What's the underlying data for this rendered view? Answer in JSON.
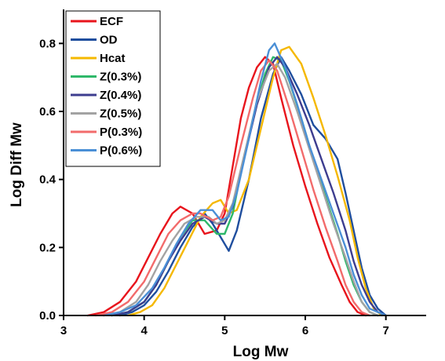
{
  "chart_data": {
    "type": "line",
    "title": "",
    "xlabel": "Log Mw",
    "ylabel": "Log Diff Mw",
    "xlim": [
      3,
      7.5
    ],
    "ylim": [
      0,
      0.9
    ],
    "xticks": [
      3,
      4,
      5,
      6,
      7
    ],
    "yticks": [
      0.0,
      0.2,
      0.4,
      0.6,
      0.8
    ],
    "xtick_labels": [
      "3",
      "4",
      "5",
      "6",
      "7"
    ],
    "ytick_labels": [
      "0.0",
      "0.2",
      "0.4",
      "0.6",
      "0.8"
    ],
    "grid": false,
    "legend_position": "top-left",
    "series": [
      {
        "name": "ECF",
        "color": "#e8141c",
        "x": [
          3.3,
          3.5,
          3.7,
          3.9,
          4.05,
          4.2,
          4.35,
          4.45,
          4.6,
          4.75,
          4.9,
          5.0,
          5.1,
          5.2,
          5.3,
          5.4,
          5.5,
          5.6,
          5.7,
          5.85,
          6.0,
          6.15,
          6.3,
          6.45,
          6.55,
          6.65,
          6.75
        ],
        "y": [
          0.0,
          0.01,
          0.04,
          0.1,
          0.17,
          0.24,
          0.3,
          0.32,
          0.3,
          0.24,
          0.25,
          0.3,
          0.44,
          0.58,
          0.67,
          0.73,
          0.76,
          0.74,
          0.64,
          0.5,
          0.38,
          0.27,
          0.17,
          0.09,
          0.04,
          0.01,
          0.0
        ]
      },
      {
        "name": "OD",
        "color": "#1f4e9e",
        "x": [
          3.7,
          3.85,
          4.0,
          4.15,
          4.3,
          4.45,
          4.6,
          4.75,
          4.85,
          4.95,
          5.05,
          5.15,
          5.3,
          5.45,
          5.6,
          5.7,
          5.8,
          5.95,
          6.1,
          6.25,
          6.4,
          6.5,
          6.6,
          6.7,
          6.8,
          6.9,
          7.0
        ],
        "y": [
          0.0,
          0.01,
          0.03,
          0.07,
          0.13,
          0.2,
          0.26,
          0.3,
          0.27,
          0.23,
          0.19,
          0.25,
          0.4,
          0.58,
          0.71,
          0.76,
          0.72,
          0.65,
          0.56,
          0.52,
          0.46,
          0.36,
          0.25,
          0.14,
          0.06,
          0.02,
          0.0
        ]
      },
      {
        "name": "Hcat",
        "color": "#f5b800",
        "x": [
          3.8,
          3.95,
          4.1,
          4.25,
          4.4,
          4.55,
          4.7,
          4.85,
          4.95,
          5.05,
          5.15,
          5.3,
          5.45,
          5.6,
          5.7,
          5.8,
          5.95,
          6.1,
          6.25,
          6.4,
          6.55,
          6.65,
          6.75,
          6.85,
          6.95
        ],
        "y": [
          0.0,
          0.01,
          0.03,
          0.08,
          0.15,
          0.22,
          0.29,
          0.33,
          0.34,
          0.3,
          0.31,
          0.4,
          0.55,
          0.7,
          0.78,
          0.79,
          0.74,
          0.64,
          0.53,
          0.41,
          0.28,
          0.17,
          0.08,
          0.02,
          0.0
        ]
      },
      {
        "name": "Z(0.3%)",
        "color": "#2fb86a",
        "x": [
          3.6,
          3.8,
          4.0,
          4.15,
          4.3,
          4.45,
          4.6,
          4.75,
          4.9,
          5.0,
          5.1,
          5.2,
          5.35,
          5.5,
          5.6,
          5.7,
          5.8,
          5.95,
          6.1,
          6.25,
          6.4,
          6.5,
          6.6,
          6.7,
          6.8,
          6.9
        ],
        "y": [
          0.0,
          0.01,
          0.04,
          0.09,
          0.16,
          0.23,
          0.28,
          0.28,
          0.24,
          0.24,
          0.3,
          0.42,
          0.58,
          0.71,
          0.76,
          0.75,
          0.69,
          0.58,
          0.46,
          0.35,
          0.24,
          0.16,
          0.09,
          0.04,
          0.01,
          0.0
        ]
      },
      {
        "name": "Z(0.4%)",
        "color": "#3d3d8f",
        "x": [
          3.6,
          3.8,
          4.0,
          4.15,
          4.3,
          4.45,
          4.6,
          4.75,
          4.9,
          5.0,
          5.1,
          5.25,
          5.4,
          5.55,
          5.65,
          5.75,
          5.9,
          6.05,
          6.2,
          6.35,
          6.5,
          6.6,
          6.7,
          6.8,
          6.9,
          7.0
        ],
        "y": [
          0.0,
          0.01,
          0.04,
          0.09,
          0.16,
          0.22,
          0.27,
          0.29,
          0.27,
          0.27,
          0.32,
          0.47,
          0.62,
          0.73,
          0.76,
          0.73,
          0.65,
          0.56,
          0.46,
          0.36,
          0.25,
          0.16,
          0.09,
          0.04,
          0.01,
          0.0
        ]
      },
      {
        "name": "Z(0.5%)",
        "color": "#a3a3a3",
        "x": [
          3.5,
          3.7,
          3.9,
          4.05,
          4.2,
          4.35,
          4.5,
          4.65,
          4.8,
          4.9,
          5.0,
          5.1,
          5.25,
          5.4,
          5.55,
          5.65,
          5.75,
          5.9,
          6.05,
          6.2,
          6.35,
          6.5,
          6.6,
          6.7,
          6.8,
          6.9
        ],
        "y": [
          0.0,
          0.01,
          0.04,
          0.09,
          0.16,
          0.22,
          0.27,
          0.29,
          0.29,
          0.27,
          0.28,
          0.33,
          0.48,
          0.63,
          0.72,
          0.74,
          0.7,
          0.6,
          0.49,
          0.38,
          0.27,
          0.17,
          0.1,
          0.04,
          0.01,
          0.0
        ]
      },
      {
        "name": "P(0.3%)",
        "color": "#f26b6b",
        "x": [
          3.4,
          3.6,
          3.8,
          4.0,
          4.15,
          4.3,
          4.45,
          4.6,
          4.7,
          4.85,
          4.95,
          5.05,
          5.2,
          5.35,
          5.45,
          5.55,
          5.65,
          5.8,
          5.95,
          6.1,
          6.25,
          6.4,
          6.5,
          6.6,
          6.7,
          6.8
        ],
        "y": [
          0.0,
          0.01,
          0.04,
          0.1,
          0.17,
          0.24,
          0.28,
          0.3,
          0.3,
          0.28,
          0.29,
          0.35,
          0.5,
          0.64,
          0.72,
          0.75,
          0.72,
          0.61,
          0.49,
          0.37,
          0.26,
          0.16,
          0.09,
          0.04,
          0.01,
          0.0
        ]
      },
      {
        "name": "P(0.6%)",
        "color": "#4a8fd6",
        "x": [
          3.5,
          3.7,
          3.9,
          4.1,
          4.25,
          4.4,
          4.55,
          4.7,
          4.85,
          4.95,
          5.05,
          5.15,
          5.3,
          5.45,
          5.55,
          5.62,
          5.75,
          5.9,
          6.05,
          6.2,
          6.35,
          6.5,
          6.6,
          6.7,
          6.8,
          6.9,
          7.0
        ],
        "y": [
          0.0,
          0.01,
          0.03,
          0.08,
          0.14,
          0.21,
          0.27,
          0.31,
          0.31,
          0.28,
          0.29,
          0.36,
          0.52,
          0.69,
          0.78,
          0.8,
          0.73,
          0.62,
          0.5,
          0.4,
          0.3,
          0.2,
          0.12,
          0.06,
          0.02,
          0.01,
          0.0
        ]
      }
    ]
  }
}
